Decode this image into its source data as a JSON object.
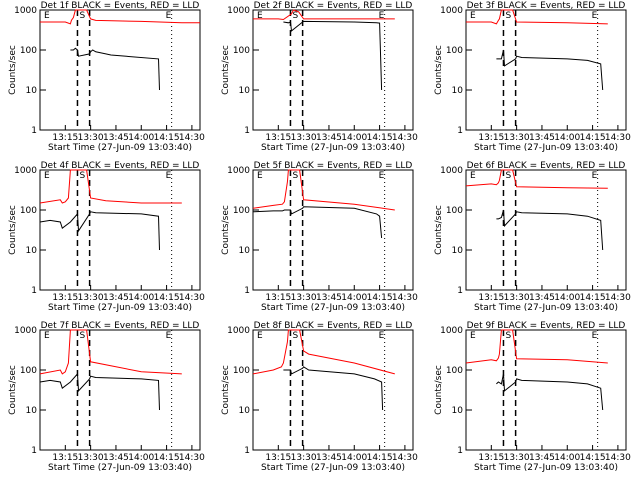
{
  "colors": {
    "events": "#000000",
    "lld": "#ff0000",
    "background": "#ffffff"
  },
  "chart_data": {
    "type": "line",
    "scale_y": "log",
    "ylim": [
      1,
      1000
    ],
    "y_ticks": [
      "1",
      "10",
      "100",
      "1000"
    ],
    "x_ticks": [
      "13:15",
      "13:30",
      "13:45",
      "14:00",
      "14:15",
      "14:30"
    ],
    "xlim_minutes": [
      13.0,
      14.58
    ],
    "xlabel": "Start Time (27-Jun-09 13:03:40)",
    "ylabel": "Counts/sec",
    "marker_labels": {
      "start": "E",
      "saa": "S",
      "end": "E"
    },
    "panels": [
      {
        "title": "Det 1f BLACK = Events, RED = LLD",
        "events": [
          [
            13.3,
            100
          ],
          [
            13.31,
            100
          ],
          [
            13.33,
            100
          ],
          [
            13.35,
            110
          ],
          [
            13.37,
            100
          ],
          [
            13.38,
            70
          ],
          [
            13.49,
            80
          ],
          [
            13.5,
            90
          ],
          [
            13.52,
            100
          ],
          [
            13.55,
            90
          ],
          [
            13.65,
            80
          ],
          [
            13.7,
            75
          ],
          [
            14.17,
            60
          ],
          [
            14.18,
            10
          ]
        ],
        "lld": [
          [
            13.0,
            500
          ],
          [
            13.25,
            500
          ],
          [
            13.3,
            450
          ],
          [
            13.31,
            550
          ],
          [
            13.33,
            650
          ],
          [
            13.35,
            1000
          ],
          [
            13.46,
            1000
          ],
          [
            13.5,
            600
          ],
          [
            13.55,
            550
          ],
          [
            14.0,
            520
          ],
          [
            14.4,
            480
          ],
          [
            14.58,
            480
          ]
        ]
      },
      {
        "title": "Det 2f BLACK = Events, RED = LLD",
        "events": [
          [
            13.3,
            500
          ],
          [
            13.35,
            480
          ],
          [
            13.37,
            500
          ],
          [
            13.38,
            300
          ],
          [
            13.49,
            500
          ],
          [
            13.5,
            520
          ],
          [
            14.0,
            500
          ],
          [
            14.22,
            480
          ],
          [
            14.25,
            470
          ],
          [
            14.27,
            10
          ]
        ],
        "lld": [
          [
            13.0,
            600
          ],
          [
            13.25,
            600
          ],
          [
            13.3,
            580
          ],
          [
            13.38,
            800
          ],
          [
            13.4,
            1000
          ],
          [
            13.45,
            900
          ],
          [
            13.5,
            600
          ],
          [
            14.0,
            600
          ],
          [
            14.4,
            600
          ]
        ]
      },
      {
        "title": "Det 3f BLACK = Events, RED = LLD",
        "events": [
          [
            13.3,
            60
          ],
          [
            13.32,
            60
          ],
          [
            13.35,
            60
          ],
          [
            13.37,
            100
          ],
          [
            13.38,
            40
          ],
          [
            13.49,
            60
          ],
          [
            13.5,
            70
          ],
          [
            13.55,
            65
          ],
          [
            14.0,
            60
          ],
          [
            14.2,
            55
          ],
          [
            14.33,
            45
          ],
          [
            14.35,
            10
          ]
        ],
        "lld": [
          [
            13.0,
            500
          ],
          [
            13.25,
            500
          ],
          [
            13.3,
            450
          ],
          [
            13.32,
            550
          ],
          [
            13.33,
            600
          ],
          [
            13.35,
            1000
          ],
          [
            13.46,
            1000
          ],
          [
            13.5,
            500
          ],
          [
            14.0,
            480
          ],
          [
            14.4,
            450
          ]
        ]
      },
      {
        "title": "Det 4f BLACK = Events, RED = LLD",
        "events": [
          [
            13.0,
            50
          ],
          [
            13.1,
            55
          ],
          [
            13.2,
            50
          ],
          [
            13.22,
            35
          ],
          [
            13.3,
            50
          ],
          [
            13.37,
            80
          ],
          [
            13.38,
            30
          ],
          [
            13.49,
            80
          ],
          [
            13.5,
            90
          ],
          [
            13.55,
            85
          ],
          [
            14.0,
            80
          ],
          [
            14.17,
            70
          ],
          [
            14.18,
            10
          ]
        ],
        "lld": [
          [
            13.0,
            150
          ],
          [
            13.2,
            180
          ],
          [
            13.22,
            150
          ],
          [
            13.25,
            160
          ],
          [
            13.28,
            200
          ],
          [
            13.3,
            1000
          ],
          [
            13.46,
            1000
          ],
          [
            13.5,
            200
          ],
          [
            13.65,
            170
          ],
          [
            14.0,
            150
          ],
          [
            14.4,
            150
          ]
        ]
      },
      {
        "title": "Det 5f BLACK = Events, RED = LLD",
        "events": [
          [
            13.0,
            90
          ],
          [
            13.2,
            95
          ],
          [
            13.29,
            95
          ],
          [
            13.31,
            100
          ],
          [
            13.37,
            100
          ],
          [
            13.38,
            80
          ],
          [
            13.49,
            110
          ],
          [
            13.5,
            120
          ],
          [
            14.0,
            110
          ],
          [
            14.22,
            80
          ],
          [
            14.25,
            70
          ],
          [
            14.27,
            20
          ]
        ],
        "lld": [
          [
            13.0,
            110
          ],
          [
            13.2,
            130
          ],
          [
            13.29,
            140
          ],
          [
            13.31,
            160
          ],
          [
            13.34,
            500
          ],
          [
            13.35,
            1000
          ],
          [
            13.46,
            1000
          ],
          [
            13.5,
            180
          ],
          [
            14.0,
            140
          ],
          [
            14.4,
            100
          ]
        ]
      },
      {
        "title": "Det 6f BLACK = Events, RED = LLD",
        "events": [
          [
            13.3,
            60
          ],
          [
            13.32,
            60
          ],
          [
            13.35,
            65
          ],
          [
            13.37,
            100
          ],
          [
            13.38,
            40
          ],
          [
            13.49,
            80
          ],
          [
            13.5,
            90
          ],
          [
            13.55,
            85
          ],
          [
            14.0,
            80
          ],
          [
            14.2,
            70
          ],
          [
            14.33,
            55
          ],
          [
            14.35,
            10
          ]
        ],
        "lld": [
          [
            13.0,
            400
          ],
          [
            13.25,
            450
          ],
          [
            13.3,
            430
          ],
          [
            13.32,
            480
          ],
          [
            13.33,
            550
          ],
          [
            13.35,
            1000
          ],
          [
            13.46,
            1000
          ],
          [
            13.5,
            380
          ],
          [
            14.0,
            360
          ],
          [
            14.4,
            350
          ]
        ]
      },
      {
        "title": "Det 7f BLACK = Events, RED = LLD",
        "events": [
          [
            13.0,
            50
          ],
          [
            13.1,
            55
          ],
          [
            13.2,
            50
          ],
          [
            13.22,
            35
          ],
          [
            13.3,
            50
          ],
          [
            13.37,
            80
          ],
          [
            13.38,
            30
          ],
          [
            13.49,
            60
          ],
          [
            13.5,
            70
          ],
          [
            13.55,
            65
          ],
          [
            14.0,
            60
          ],
          [
            14.17,
            55
          ],
          [
            14.18,
            10
          ]
        ],
        "lld": [
          [
            13.0,
            80
          ],
          [
            13.2,
            100
          ],
          [
            13.22,
            80
          ],
          [
            13.25,
            90
          ],
          [
            13.28,
            150
          ],
          [
            13.3,
            1000
          ],
          [
            13.46,
            1000
          ],
          [
            13.5,
            160
          ],
          [
            14.0,
            90
          ],
          [
            14.4,
            80
          ]
        ]
      },
      {
        "title": "Det 8f BLACK = Events, RED = LLD",
        "events": [
          [
            13.3,
            100
          ],
          [
            13.35,
            100
          ],
          [
            13.37,
            100
          ],
          [
            13.38,
            80
          ],
          [
            13.49,
            110
          ],
          [
            13.5,
            120
          ],
          [
            13.55,
            100
          ],
          [
            14.0,
            80
          ],
          [
            14.2,
            60
          ],
          [
            14.27,
            50
          ],
          [
            14.28,
            10
          ]
        ],
        "lld": [
          [
            13.0,
            80
          ],
          [
            13.2,
            100
          ],
          [
            13.28,
            120
          ],
          [
            13.3,
            150
          ],
          [
            13.34,
            500
          ],
          [
            13.35,
            1000
          ],
          [
            13.46,
            1000
          ],
          [
            13.5,
            300
          ],
          [
            13.55,
            250
          ],
          [
            14.0,
            150
          ],
          [
            14.4,
            80
          ]
        ]
      },
      {
        "title": "Det 9f BLACK = Events, RED = LLD",
        "events": [
          [
            13.3,
            45
          ],
          [
            13.32,
            50
          ],
          [
            13.35,
            45
          ],
          [
            13.37,
            80
          ],
          [
            13.38,
            30
          ],
          [
            13.49,
            50
          ],
          [
            13.5,
            60
          ],
          [
            13.55,
            55
          ],
          [
            14.0,
            50
          ],
          [
            14.2,
            45
          ],
          [
            14.33,
            35
          ],
          [
            14.35,
            10
          ]
        ],
        "lld": [
          [
            13.0,
            150
          ],
          [
            13.25,
            180
          ],
          [
            13.3,
            170
          ],
          [
            13.32,
            200
          ],
          [
            13.33,
            250
          ],
          [
            13.35,
            1000
          ],
          [
            13.46,
            1000
          ],
          [
            13.5,
            190
          ],
          [
            14.0,
            180
          ],
          [
            14.4,
            150
          ]
        ]
      }
    ]
  }
}
